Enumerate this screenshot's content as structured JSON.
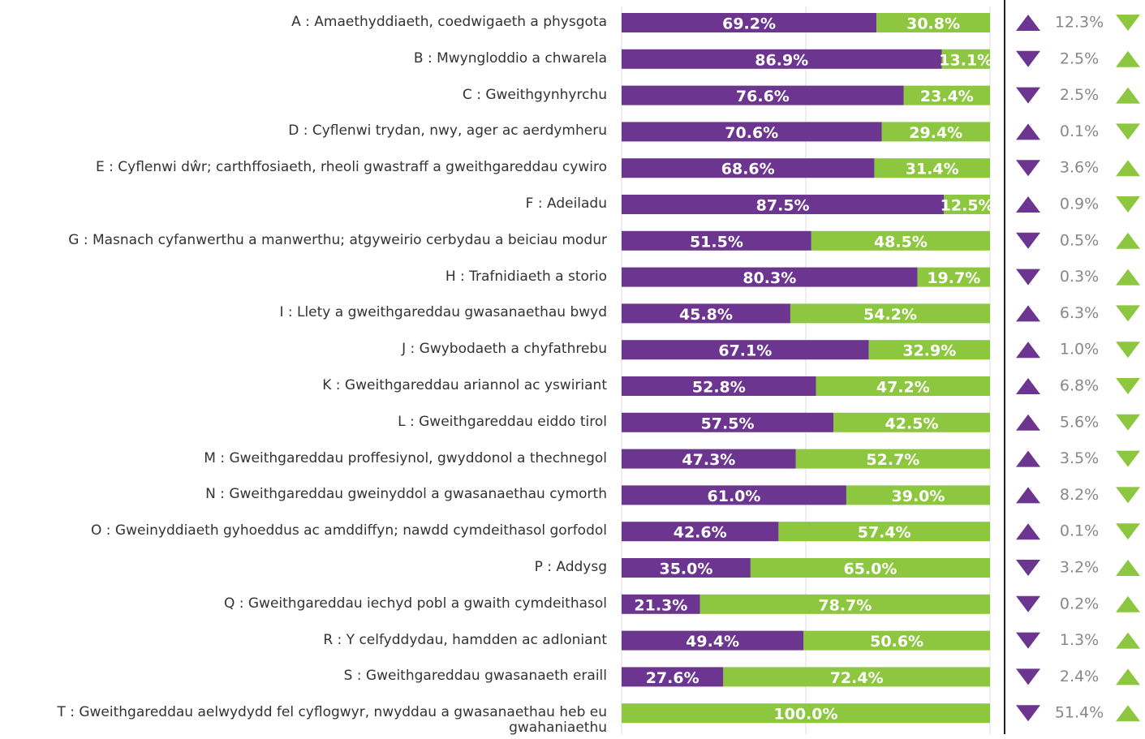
{
  "chart_data": {
    "type": "stacked_bar_horizontal",
    "categories": [
      "A : Amaethyddiaeth, coedwigaeth a physgota",
      "B : Mwyngloddio a chwarela",
      "C : Gweithgynhyrchu",
      "D : Cyflenwi trydan, nwy, ager ac aerdymheru",
      "E : Cyflenwi dŵr; carthffosiaeth, rheoli gwastraff a gweithgareddau cywiro",
      "F : Adeiladu",
      "G : Masnach cyfanwerthu a manwerthu; atgyweirio cerbydau a beiciau modur",
      "H : Trafnidiaeth a storio",
      "I : Llety a gweithgareddau gwasanaethau bwyd",
      "J : Gwybodaeth a chyfathrebu",
      "K : Gweithgareddau ariannol ac yswiriant",
      "L : Gweithgareddau eiddo tirol",
      "M : Gweithgareddau proffesiynol, gwyddonol a thechnegol",
      "N : Gweithgareddau gweinyddol a gwasanaethau cymorth",
      "O : Gweinyddiaeth gyhoeddus ac amddiffyn;  nawdd cymdeithasol gorfodol",
      "P : Addysg",
      "Q : Gweithgareddau iechyd pobl a gwaith cymdeithasol",
      "R : Y celfyddydau, hamdden ac adloniant",
      "S : Gweithgareddau gwasanaeth eraill",
      "T : Gweithgareddau aelwydydd fel cyflogwyr, nwyddau a gwasanaethau heb eu gwahaniaethu"
    ],
    "series": [
      {
        "color": "#6b3590",
        "values": [
          69.2,
          86.9,
          76.6,
          70.6,
          68.6,
          87.5,
          51.5,
          80.3,
          45.8,
          67.1,
          52.8,
          57.5,
          47.3,
          61.0,
          42.6,
          35.0,
          21.3,
          49.4,
          27.6,
          0
        ],
        "value_labels": [
          "69.2%",
          "86.9%",
          "76.6%",
          "70.6%",
          "68.6%",
          "87.5%",
          "51.5%",
          "80.3%",
          "45.8%",
          "67.1%",
          "52.8%",
          "57.5%",
          "47.3%",
          "61.0%",
          "42.6%",
          "35.0%",
          "21.3%",
          "49.4%",
          "27.6%",
          null
        ]
      },
      {
        "color": "#8dc63f",
        "values": [
          30.8,
          13.1,
          23.4,
          29.4,
          31.4,
          12.5,
          48.5,
          19.7,
          54.2,
          32.9,
          47.2,
          42.5,
          52.7,
          39.0,
          57.4,
          65.0,
          78.7,
          50.6,
          72.4,
          100.0
        ],
        "value_labels": [
          "30.8%",
          "13.1%",
          "23.4%",
          "29.4%",
          "31.4%",
          "12.5%",
          "48.5%",
          "19.7%",
          "54.2%",
          "32.9%",
          "47.2%",
          "42.5%",
          "52.7%",
          "39.0%",
          "57.4%",
          "65.0%",
          "78.7%",
          "50.6%",
          "72.4%",
          "100.0%"
        ]
      }
    ],
    "xlim": [
      0,
      100
    ],
    "xticks": [
      0,
      50,
      100
    ],
    "grid": true,
    "changes": [
      {
        "value": 12.3,
        "label": "12.3%",
        "direction": "up"
      },
      {
        "value": 2.5,
        "label": "2.5%",
        "direction": "down"
      },
      {
        "value": 2.5,
        "label": "2.5%",
        "direction": "down"
      },
      {
        "value": 0.1,
        "label": "0.1%",
        "direction": "up"
      },
      {
        "value": 3.6,
        "label": "3.6%",
        "direction": "down"
      },
      {
        "value": 0.9,
        "label": "0.9%",
        "direction": "up"
      },
      {
        "value": 0.5,
        "label": "0.5%",
        "direction": "down"
      },
      {
        "value": 0.3,
        "label": "0.3%",
        "direction": "down"
      },
      {
        "value": 6.3,
        "label": "6.3%",
        "direction": "up"
      },
      {
        "value": 1.0,
        "label": "1.0%",
        "direction": "up"
      },
      {
        "value": 6.8,
        "label": "6.8%",
        "direction": "up"
      },
      {
        "value": 5.6,
        "label": "5.6%",
        "direction": "up"
      },
      {
        "value": 3.5,
        "label": "3.5%",
        "direction": "up"
      },
      {
        "value": 8.2,
        "label": "8.2%",
        "direction": "up"
      },
      {
        "value": 0.1,
        "label": "0.1%",
        "direction": "up"
      },
      {
        "value": 3.2,
        "label": "3.2%",
        "direction": "down"
      },
      {
        "value": 0.2,
        "label": "0.2%",
        "direction": "down"
      },
      {
        "value": 1.3,
        "label": "1.3%",
        "direction": "down"
      },
      {
        "value": 2.4,
        "label": "2.4%",
        "direction": "down"
      },
      {
        "value": 51.4,
        "label": "51.4%",
        "direction": "down"
      }
    ]
  }
}
